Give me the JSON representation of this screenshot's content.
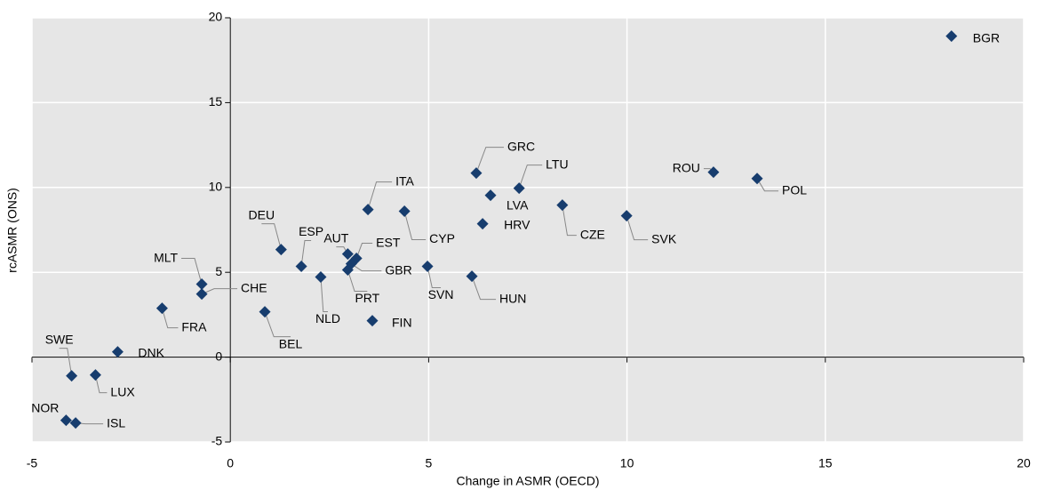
{
  "chart_data": {
    "type": "scatter",
    "xlabel": "Change in ASMR (OECD)",
    "ylabel": "rcASMR (ONS)",
    "series": [
      {
        "color": "#173d6e",
        "labels": [
          "BGR",
          "ROU",
          "POL",
          "GRC",
          "LTU",
          "LVA",
          "CZE",
          "SVK",
          "HRV",
          "ITA",
          "CYP",
          "DEU",
          "ESP",
          "AUT",
          "EST",
          "GBR",
          "PRT",
          "NLD",
          "SVN",
          "HUN",
          "FIN",
          "BEL",
          "MLT",
          "CHE",
          "FRA",
          "DNK",
          "SWE",
          "LUX",
          "NOR",
          "ISL"
        ],
        "x": [
          18.18,
          12.18,
          13.28,
          6.2,
          7.28,
          6.56,
          8.37,
          9.99,
          6.36,
          3.47,
          4.39,
          1.28,
          1.79,
          2.96,
          3.18,
          3.05,
          2.96,
          2.28,
          4.97,
          6.09,
          3.58,
          0.87,
          -0.72,
          -0.72,
          -1.72,
          -2.84,
          -4.0,
          -3.4,
          -4.14,
          -3.9
        ],
        "values": [
          18.92,
          10.9,
          10.53,
          10.85,
          9.96,
          9.54,
          8.96,
          8.33,
          7.86,
          8.7,
          8.6,
          6.34,
          5.35,
          6.08,
          5.82,
          5.5,
          5.14,
          4.72,
          5.35,
          4.77,
          2.15,
          2.67,
          4.3,
          3.72,
          2.88,
          0.31,
          -1.1,
          -1.05,
          -3.72,
          -3.88
        ]
      }
    ],
    "xlim": [
      -5,
      20
    ],
    "xticks": [
      -5,
      0,
      5,
      10,
      15,
      20
    ],
    "ylim": [
      -5,
      20
    ],
    "yticks": [
      -5,
      0,
      5,
      10,
      15,
      20
    ],
    "grid": true
  }
}
